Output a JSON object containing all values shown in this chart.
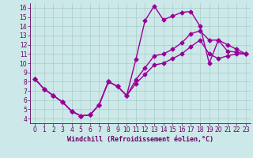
{
  "background_color": "#cce8e8",
  "line_color": "#990099",
  "grid_color": "#aacccc",
  "xlabel": "Windchill (Refroidissement éolien,°C)",
  "xlabel_color": "#660066",
  "tick_color": "#660066",
  "xlim": [
    -0.5,
    23.5
  ],
  "ylim": [
    3.5,
    16.5
  ],
  "xticks": [
    0,
    1,
    2,
    3,
    4,
    5,
    6,
    7,
    8,
    9,
    10,
    11,
    12,
    13,
    14,
    15,
    16,
    17,
    18,
    19,
    20,
    21,
    22,
    23
  ],
  "yticks": [
    4,
    5,
    6,
    7,
    8,
    9,
    10,
    11,
    12,
    13,
    14,
    15,
    16
  ],
  "line1_x": [
    0,
    1,
    2,
    3,
    4,
    5,
    6,
    7,
    8,
    9,
    10,
    11,
    12,
    13,
    14,
    15,
    16,
    17,
    18,
    19,
    20,
    21,
    22,
    23
  ],
  "line1_y": [
    8.3,
    7.2,
    6.5,
    5.8,
    4.8,
    4.3,
    4.4,
    5.5,
    8.0,
    7.5,
    6.5,
    10.4,
    14.6,
    16.2,
    14.7,
    15.1,
    15.5,
    15.6,
    14.0,
    10.0,
    12.5,
    11.3,
    11.2,
    11.0
  ],
  "line2_x": [
    0,
    1,
    2,
    3,
    4,
    5,
    6,
    7,
    8,
    9,
    10,
    11,
    12,
    13,
    14,
    15,
    16,
    17,
    18,
    19,
    20,
    21,
    22,
    23
  ],
  "line2_y": [
    8.3,
    7.2,
    6.5,
    5.8,
    4.8,
    4.3,
    4.4,
    5.5,
    8.0,
    7.5,
    6.5,
    8.2,
    9.5,
    10.8,
    11.0,
    11.5,
    12.2,
    13.2,
    13.5,
    12.5,
    12.5,
    12.0,
    11.5,
    11.0
  ],
  "line3_x": [
    0,
    1,
    2,
    3,
    4,
    5,
    6,
    7,
    8,
    9,
    10,
    11,
    12,
    13,
    14,
    15,
    16,
    17,
    18,
    19,
    20,
    21,
    22,
    23
  ],
  "line3_y": [
    8.3,
    7.2,
    6.5,
    5.8,
    4.8,
    4.3,
    4.4,
    5.5,
    8.0,
    7.5,
    6.5,
    7.8,
    8.8,
    9.8,
    10.0,
    10.5,
    11.0,
    11.8,
    12.5,
    11.0,
    10.5,
    10.8,
    11.0,
    11.0
  ],
  "marker": "D",
  "markersize": 2.5,
  "linewidth": 1.0,
  "tick_fontsize": 5.5,
  "xlabel_fontsize": 6.0
}
